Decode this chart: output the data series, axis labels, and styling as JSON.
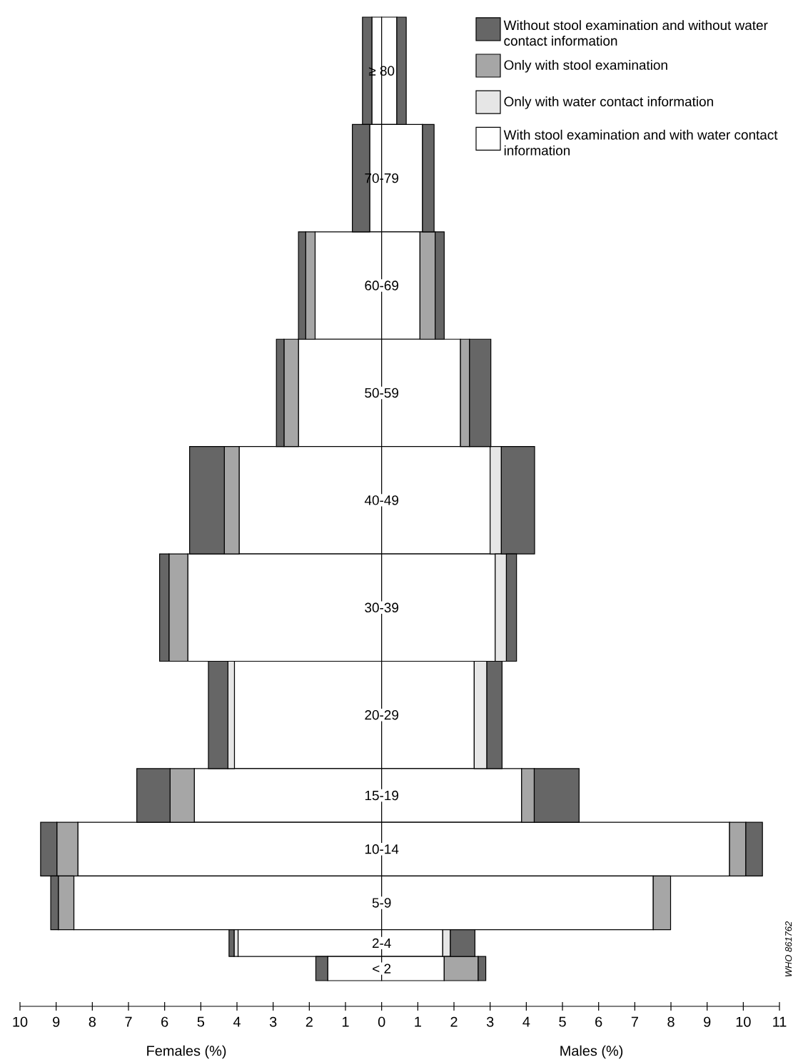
{
  "chart_data": {
    "type": "bar",
    "orientation": "horizontal",
    "stacked": true,
    "categories": [
      "≥ 80",
      "70-79",
      "60-69",
      "50-59",
      "40-49",
      "30-39",
      "20-29",
      "15-19",
      "10-14",
      "5-9",
      "2-4",
      "< 2"
    ],
    "series": [
      {
        "name": "With stool examination and with water contact information",
        "color": "#ffffff",
        "values": [
          -0.27,
          -0.33,
          -1.84,
          -2.3,
          -3.94,
          -5.36,
          -4.07,
          -5.18,
          -8.4,
          -8.51,
          -3.97,
          -1.49
        ]
      },
      {
        "name": "Only with water contact information",
        "color": "#e6e6e6",
        "values": [
          null,
          null,
          null,
          null,
          null,
          null,
          -0.18,
          null,
          null,
          null,
          -0.11,
          null
        ]
      },
      {
        "name": "Only with stool examination",
        "color": "#a6a6a6",
        "values": [
          null,
          null,
          -0.26,
          -0.4,
          -0.41,
          -0.52,
          null,
          -0.67,
          -0.58,
          -0.43,
          null,
          null
        ]
      },
      {
        "name": "Without stool examination and without water contact information",
        "color": "#666666",
        "values": [
          -0.26,
          -0.48,
          -0.2,
          -0.21,
          -0.96,
          -0.26,
          -0.54,
          -0.92,
          -0.45,
          -0.21,
          -0.14,
          -0.33
        ]
      },
      {
        "color": "#ffffff",
        "values": [
          0.42,
          1.13,
          1.06,
          2.18,
          3.0,
          3.14,
          2.56,
          3.87,
          9.62,
          7.51,
          1.69,
          1.73
        ]
      },
      {
        "color": "#e6e6e6",
        "values": [
          null,
          null,
          null,
          null,
          0.31,
          0.31,
          0.35,
          null,
          null,
          null,
          0.21,
          null
        ]
      },
      {
        "color": "#a6a6a6",
        "values": [
          null,
          null,
          0.42,
          0.25,
          null,
          null,
          null,
          0.35,
          0.45,
          0.48,
          null,
          0.94
        ]
      },
      {
        "color": "#666666",
        "values": [
          0.26,
          0.32,
          0.25,
          0.59,
          0.92,
          0.28,
          0.42,
          1.24,
          0.46,
          null,
          0.68,
          0.21
        ]
      }
    ],
    "xlim": [
      -10,
      11
    ],
    "xticks": [
      {
        "value": -10,
        "label": "10"
      },
      {
        "value": -9,
        "label": "9"
      },
      {
        "value": -8,
        "label": "8"
      },
      {
        "value": -7,
        "label": "7"
      },
      {
        "value": -6,
        "label": "6"
      },
      {
        "value": -5,
        "label": "5"
      },
      {
        "value": -4,
        "label": "4"
      },
      {
        "value": -3,
        "label": "3"
      },
      {
        "value": -2,
        "label": "2"
      },
      {
        "value": -1,
        "label": "1"
      },
      0,
      1,
      2,
      3,
      4,
      5,
      6,
      7,
      8,
      9,
      10,
      11
    ],
    "legend": "top right",
    "annotations": [
      "Females (%)",
      "Males (%)",
      "WHO 861762"
    ]
  }
}
